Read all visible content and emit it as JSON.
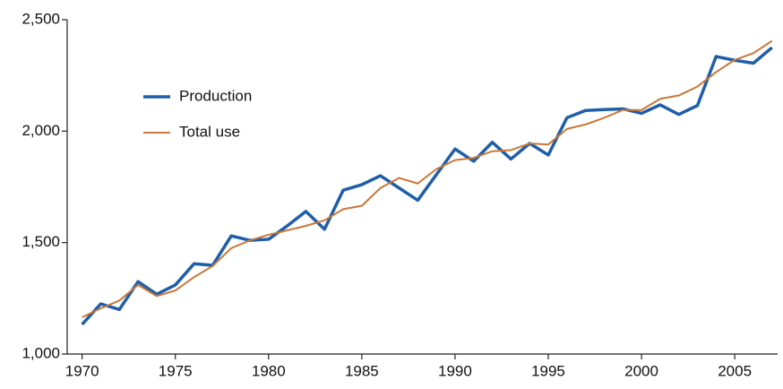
{
  "chart_data": {
    "type": "line",
    "x": [
      1970,
      1971,
      1972,
      1973,
      1974,
      1975,
      1976,
      1977,
      1978,
      1979,
      1980,
      1981,
      1982,
      1983,
      1984,
      1985,
      1986,
      1987,
      1988,
      1989,
      1990,
      1991,
      1992,
      1993,
      1994,
      1995,
      1996,
      1997,
      1998,
      1999,
      2000,
      2001,
      2002,
      2003,
      2004,
      2005,
      2006,
      2007
    ],
    "series": [
      {
        "name": "Production",
        "color": "#1f5ea8",
        "width": 3.5,
        "values": [
          1133,
          1225,
          1200,
          1325,
          1268,
          1310,
          1405,
          1398,
          1530,
          1510,
          1515,
          1575,
          1640,
          1560,
          1735,
          1760,
          1800,
          1745,
          1690,
          1805,
          1920,
          1865,
          1950,
          1875,
          1945,
          1893,
          2060,
          2093,
          2097,
          2100,
          2080,
          2118,
          2075,
          2115,
          2335,
          2318,
          2305,
          2375
        ]
      },
      {
        "name": "Total use",
        "color": "#c8783a",
        "width": 2,
        "values": [
          1165,
          1205,
          1240,
          1310,
          1260,
          1285,
          1345,
          1395,
          1475,
          1510,
          1535,
          1555,
          1575,
          1600,
          1650,
          1665,
          1745,
          1790,
          1765,
          1830,
          1870,
          1880,
          1910,
          1915,
          1945,
          1940,
          2010,
          2030,
          2060,
          2095,
          2095,
          2145,
          2160,
          2200,
          2265,
          2320,
          2350,
          2405
        ]
      }
    ],
    "xlim": [
      1969.2,
      2007.3
    ],
    "xticks": [
      1970,
      1975,
      1980,
      1985,
      1990,
      1995,
      2000,
      2005
    ],
    "ylim": [
      1000,
      2500
    ],
    "yticks": [
      {
        "value": 1000,
        "label": "1,000"
      },
      {
        "value": 1500,
        "label": "1,500"
      },
      {
        "value": 2000,
        "label": "2,000"
      },
      {
        "value": 2500,
        "label": "2,500"
      }
    ],
    "grid": false
  }
}
